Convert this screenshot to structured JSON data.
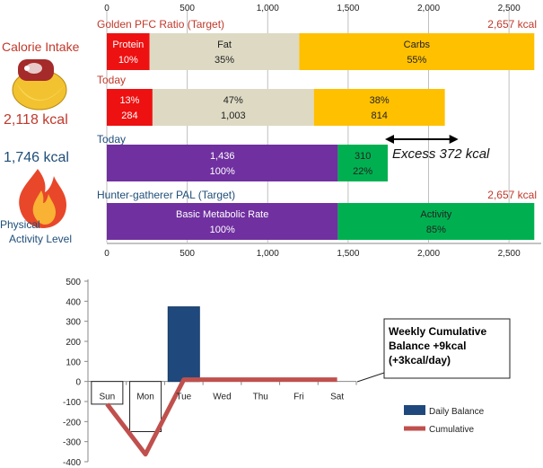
{
  "side_labels": {
    "calorie_title": "Calorie Intake",
    "calorie_value": "2,118 kcal",
    "activity_value": "1,746 kcal",
    "activity_title_line1": "Physical",
    "activity_title_line2": "Activity Level"
  },
  "colors": {
    "protein": "#ee1111",
    "fat": "#ddd9c3",
    "carbs": "#ffc000",
    "bmr": "#7030a0",
    "activity": "#00b050",
    "daily_bar": "#1f497d",
    "cumulative_line": "#c0504d",
    "header_red": "#c0392b",
    "header_blue": "#1f4e79"
  },
  "icons": [
    "steak-bananas-icon",
    "flame-icon"
  ],
  "chart_data": [
    {
      "type": "bar",
      "orientation": "horizontal-stacked",
      "xlim": [
        0,
        2700
      ],
      "x_ticks": [
        {
          "value": 0,
          "label": "0"
        },
        {
          "value": 500,
          "label": "500"
        },
        {
          "value": 1000,
          "label": "1,000"
        },
        {
          "value": 1500,
          "label": "1,500"
        },
        {
          "value": 2000,
          "label": "2,000"
        },
        {
          "value": 2500,
          "label": "2,500"
        }
      ],
      "rows": [
        {
          "title": "Golden PFC Ratio (Target)",
          "title_color": "red",
          "total": "2,657 kcal",
          "segments": [
            {
              "name": "Protein",
              "value": 266,
              "line1": "Protein",
              "line2": "10%",
              "color": "protein",
              "light": true
            },
            {
              "name": "Fat",
              "value": 930,
              "line1": "Fat",
              "line2": "35%",
              "color": "fat"
            },
            {
              "name": "Carbs",
              "value": 1461,
              "line1": "Carbs",
              "line2": "55%",
              "color": "carbs"
            }
          ]
        },
        {
          "title": "Today",
          "title_color": "red",
          "total": "",
          "segments": [
            {
              "name": "Protein",
              "value": 284,
              "line1": "13%",
              "line2": "284",
              "color": "protein",
              "light": true
            },
            {
              "name": "Fat",
              "value": 1003,
              "line1": "47%",
              "line2": "1,003",
              "color": "fat"
            },
            {
              "name": "Carbs",
              "value": 814,
              "line1": "38%",
              "line2": "814",
              "color": "carbs"
            }
          ]
        },
        {
          "title": "Today",
          "title_color": "blue",
          "total": "",
          "segments": [
            {
              "name": "Basic Metabolic Rate",
              "value": 1436,
              "line1": "1,436",
              "line2": "100%",
              "color": "bmr",
              "light": true
            },
            {
              "name": "Activity",
              "value": 310,
              "line1": "310",
              "line2": "22%",
              "color": "activity"
            }
          ]
        },
        {
          "title": "Hunter-gatherer  PAL (Target)",
          "title_color": "blue",
          "total": "2,657 kcal",
          "segments": [
            {
              "name": "Basic Metabolic Rate",
              "value": 1436,
              "line1": "Basic Metabolic Rate",
              "line2": "100%",
              "color": "bmr",
              "light": true
            },
            {
              "name": "Activity",
              "value": 1221,
              "line1": "Activity",
              "line2": "85%",
              "color": "activity"
            }
          ]
        }
      ],
      "annotation": {
        "text": "Excess 372 kcal",
        "from": 1746,
        "to": 2118
      }
    },
    {
      "type": "bar",
      "categories": [
        "Sun",
        "Mon",
        "Tue",
        "Wed",
        "Thu",
        "Fri",
        "Sat"
      ],
      "ylim": [
        -400,
        500
      ],
      "y_ticks": [
        500,
        400,
        300,
        200,
        100,
        0,
        -100,
        -200,
        -300,
        -400
      ],
      "series": [
        {
          "name": "Daily Balance",
          "kind": "bar",
          "values": [
            -113,
            -250,
            372,
            null,
            null,
            null,
            null
          ]
        },
        {
          "name": "Cumulative",
          "kind": "line",
          "values": [
            -113,
            -363,
            9,
            9,
            9,
            9,
            9
          ]
        }
      ],
      "annotation": {
        "line1": "Weekly Cumulative",
        "line2": "Balance +9kcal",
        "line3": "(+3kcal/day)"
      }
    }
  ]
}
